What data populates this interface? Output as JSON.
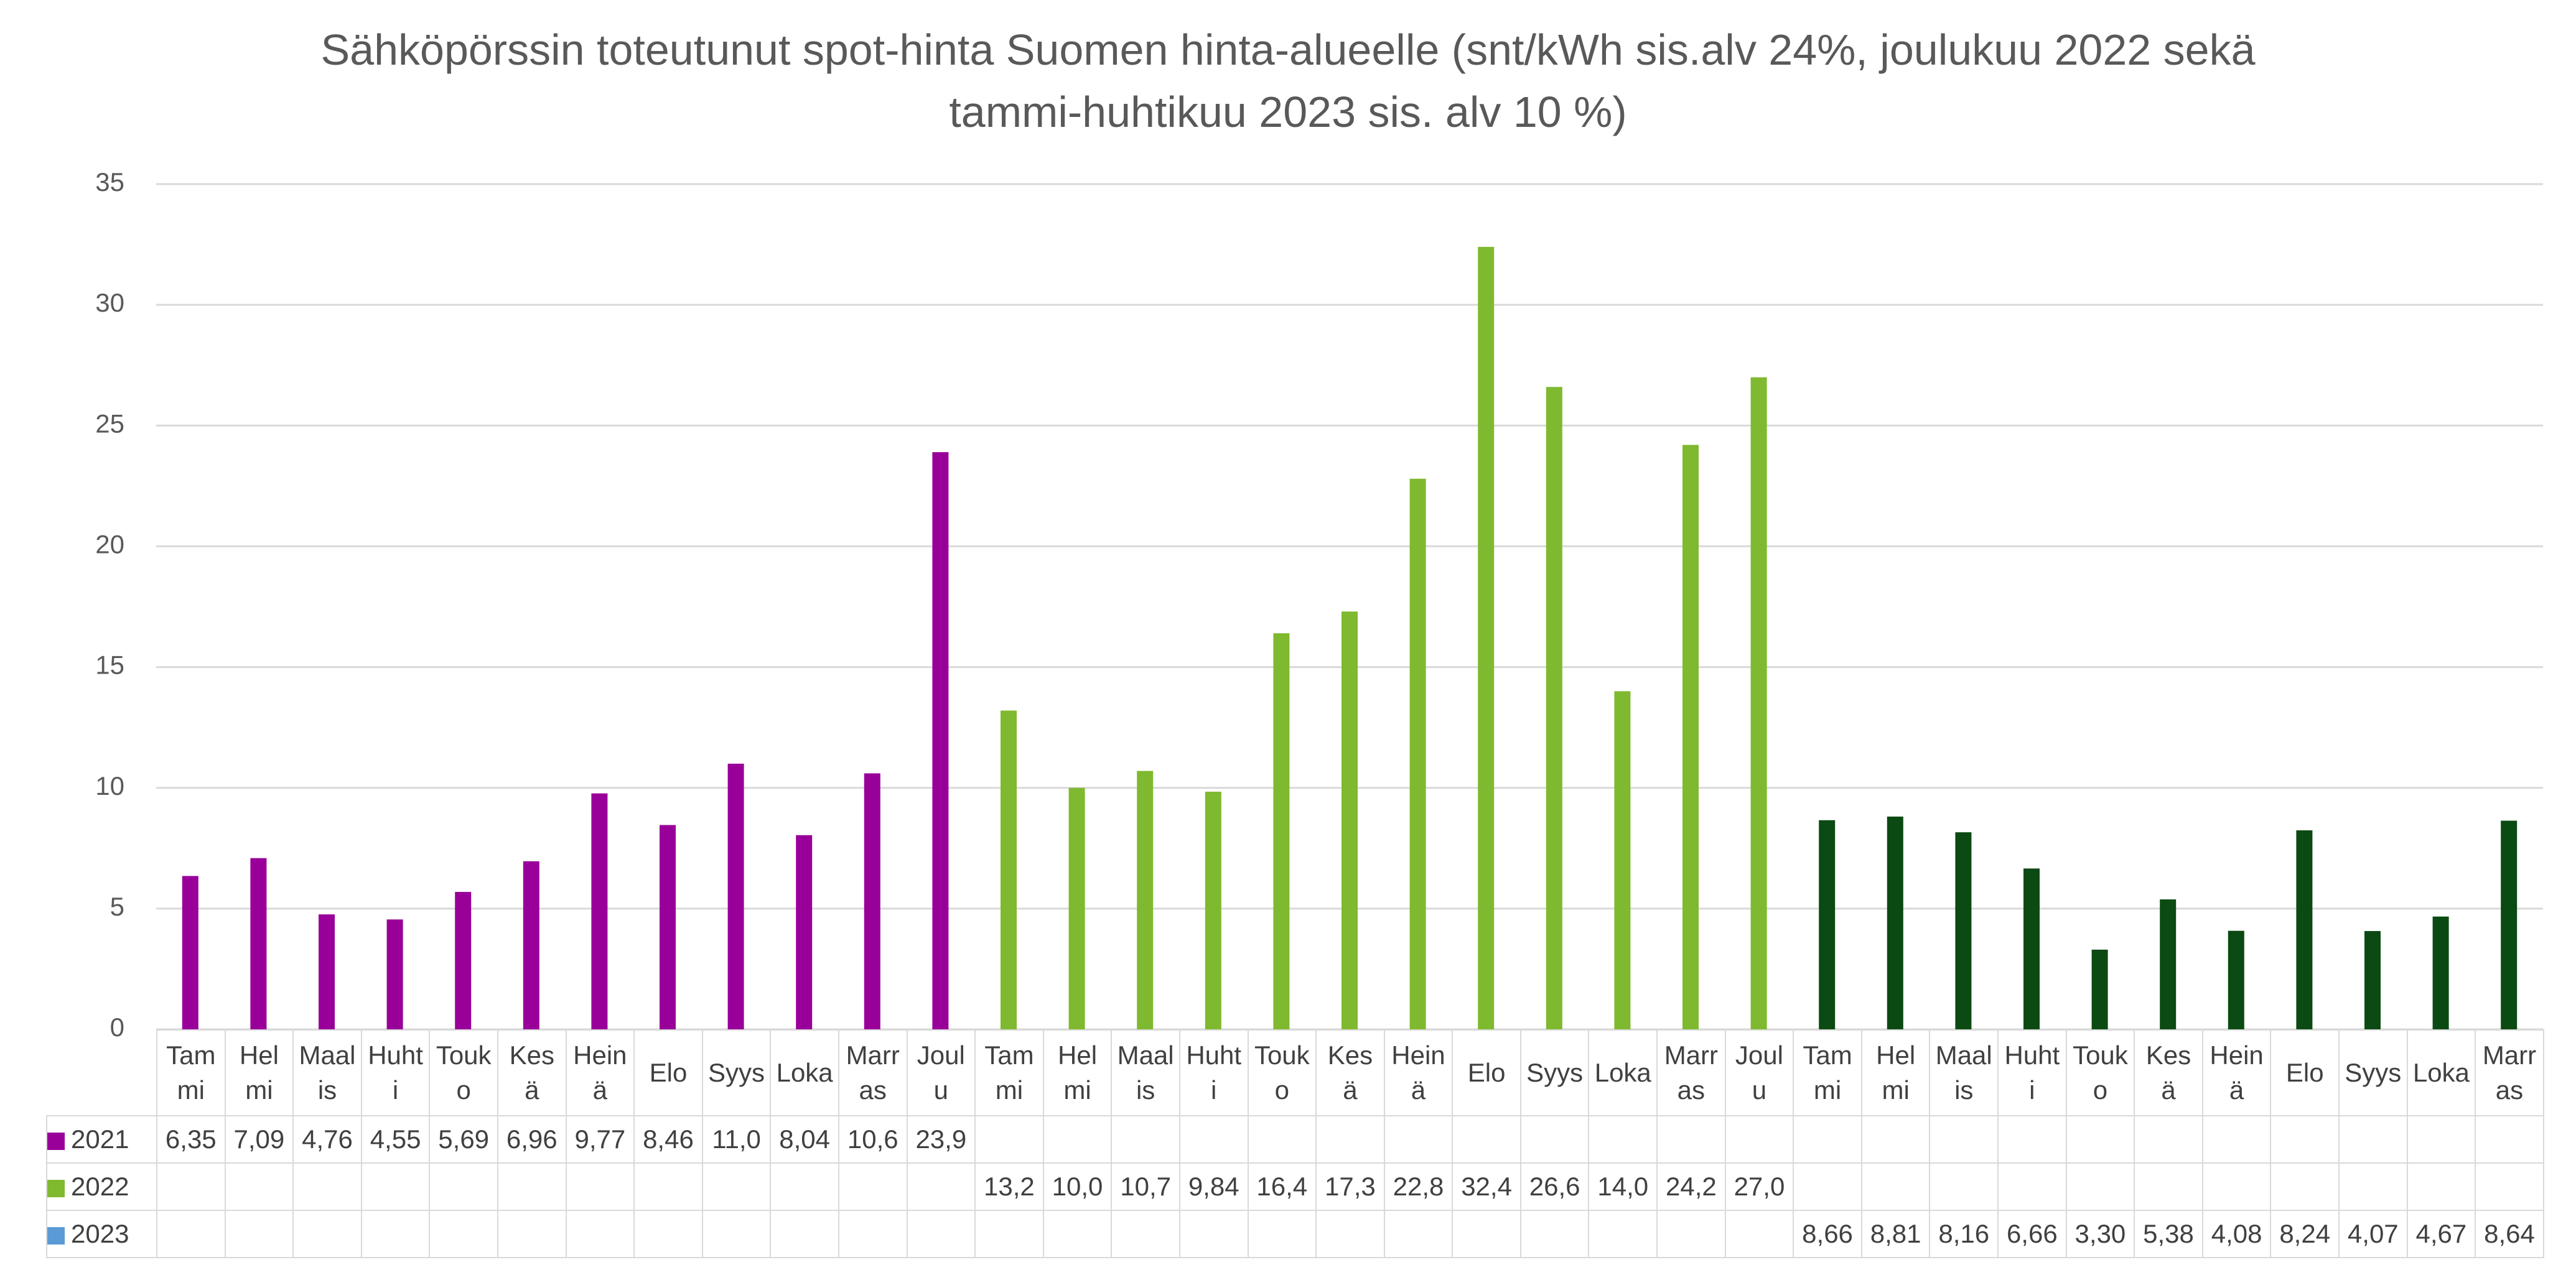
{
  "chart_data": {
    "type": "bar",
    "title": "Sähköpörssin toteutunut spot-hinta Suomen hinta-alueelle (snt/kWh sis.alv 24%, joulukuu 2022 sekä tammi-huhtikuu 2023 sis. alv 10 %)",
    "categories": [
      "Tammi",
      "Helmi",
      "Maalis",
      "Huhti",
      "Touko",
      "Kesä",
      "Heinä",
      "Elo",
      "Syys",
      "Loka",
      "Marras",
      "Joulu",
      "Tammi",
      "Helmi",
      "Maalis",
      "Huhti",
      "Touko",
      "Kesä",
      "Heinä",
      "Elo",
      "Syys",
      "Loka",
      "Marras",
      "Joulu",
      "Tammi",
      "Helmi",
      "Maalis",
      "Huhti",
      "Touko",
      "Kesä",
      "Heinä",
      "Elo",
      "Syys",
      "Loka",
      "Marras"
    ],
    "series": [
      {
        "name": "2021",
        "color": "#990099",
        "legend_color": "#990099",
        "values": [
          6.35,
          7.09,
          4.76,
          4.55,
          5.69,
          6.96,
          9.77,
          8.46,
          11.0,
          8.04,
          10.6,
          23.9,
          null,
          null,
          null,
          null,
          null,
          null,
          null,
          null,
          null,
          null,
          null,
          null,
          null,
          null,
          null,
          null,
          null,
          null,
          null,
          null,
          null,
          null,
          null
        ],
        "value_labels": [
          "6,35",
          "7,09",
          "4,76",
          "4,55",
          "5,69",
          "6,96",
          "9,77",
          "8,46",
          "11,0",
          "8,04",
          "10,6",
          "23,9",
          null,
          null,
          null,
          null,
          null,
          null,
          null,
          null,
          null,
          null,
          null,
          null,
          null,
          null,
          null,
          null,
          null,
          null,
          null,
          null,
          null,
          null,
          null
        ]
      },
      {
        "name": "2022",
        "color": "#7fb92f",
        "legend_color": "#7fb92f",
        "values": [
          null,
          null,
          null,
          null,
          null,
          null,
          null,
          null,
          null,
          null,
          null,
          null,
          13.2,
          10.0,
          10.7,
          9.84,
          16.4,
          17.3,
          22.8,
          32.4,
          26.6,
          14.0,
          24.2,
          27.0,
          null,
          null,
          null,
          null,
          null,
          null,
          null,
          null,
          null,
          null,
          null
        ],
        "value_labels": [
          null,
          null,
          null,
          null,
          null,
          null,
          null,
          null,
          null,
          null,
          null,
          null,
          "13,2",
          "10,0",
          "10,7",
          "9,84",
          "16,4",
          "17,3",
          "22,8",
          "32,4",
          "26,6",
          "14,0",
          "24,2",
          "27,0",
          null,
          null,
          null,
          null,
          null,
          null,
          null,
          null,
          null,
          null,
          null
        ]
      },
      {
        "name": "2023",
        "color": "#0b4a12",
        "legend_color": "#5b9bd5",
        "values": [
          null,
          null,
          null,
          null,
          null,
          null,
          null,
          null,
          null,
          null,
          null,
          null,
          null,
          null,
          null,
          null,
          null,
          null,
          null,
          null,
          null,
          null,
          null,
          null,
          8.66,
          8.81,
          8.16,
          6.66,
          3.3,
          5.38,
          4.08,
          8.24,
          4.07,
          4.67,
          8.64
        ],
        "value_labels": [
          null,
          null,
          null,
          null,
          null,
          null,
          null,
          null,
          null,
          null,
          null,
          null,
          null,
          null,
          null,
          null,
          null,
          null,
          null,
          null,
          null,
          null,
          null,
          null,
          "8,66",
          "8,81",
          "8,16",
          "6,66",
          "3,30",
          "5,38",
          "4,08",
          "8,24",
          "4,07",
          "4,67",
          "8,64"
        ]
      }
    ],
    "ylim": [
      0,
      35
    ],
    "yticks": [
      0,
      5,
      10,
      15,
      20,
      25,
      30,
      35
    ],
    "grid": true
  }
}
